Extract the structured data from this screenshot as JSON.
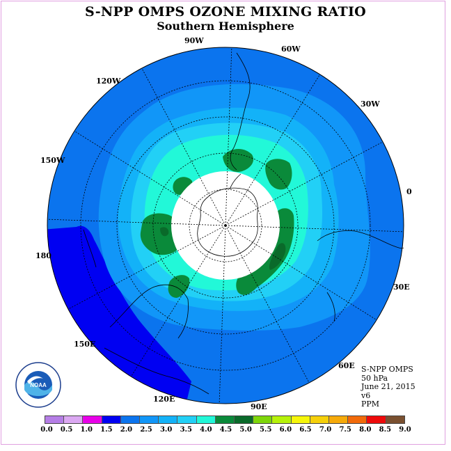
{
  "title": "S-NPP OMPS OZONE MIXING RATIO",
  "subtitle": "Southern Hemisphere",
  "longitude_labels": [
    "90W",
    "60W",
    "30W",
    "0",
    "30E",
    "60E",
    "90E",
    "120E",
    "150E",
    "180",
    "150W",
    "120W"
  ],
  "info": {
    "instrument": "S-NPP OMPS",
    "level": "50 hPa",
    "date": "June 21, 2015",
    "version": "v6",
    "units": "PPM"
  },
  "logo_text": "NOAA",
  "colorbar": {
    "ticks": [
      "0.0",
      "0.5",
      "1.0",
      "1.5",
      "2.0",
      "2.5",
      "3.0",
      "3.5",
      "4.0",
      "4.5",
      "5.0",
      "5.5",
      "6.0",
      "6.5",
      "7.0",
      "7.5",
      "8.0",
      "8.5",
      "9.0"
    ],
    "colors": [
      "#b57ee6",
      "#dba8f2",
      "#e800e8",
      "#0000f2",
      "#0b74ee",
      "#1196f8",
      "#13b2f8",
      "#22d0f6",
      "#22f8d8",
      "#0a8a3a",
      "#0a6a2a",
      "#7ed60a",
      "#b6f20a",
      "#f6f60a",
      "#f6d00a",
      "#f6aa0a",
      "#f26a0a",
      "#ee0a0a",
      "#7a5030"
    ]
  },
  "map_colors": {
    "level_2_0": "#0000f2",
    "level_2_5": "#0b74ee",
    "level_3_0": "#1196f8",
    "level_3_5": "#13b2f8",
    "level_4_0": "#22d0f6",
    "level_4_5": "#22f8d8",
    "level_5_0": "#0a8a3a",
    "level_5_5": "#0a6a2a",
    "polar_night": "#ffffff"
  }
}
